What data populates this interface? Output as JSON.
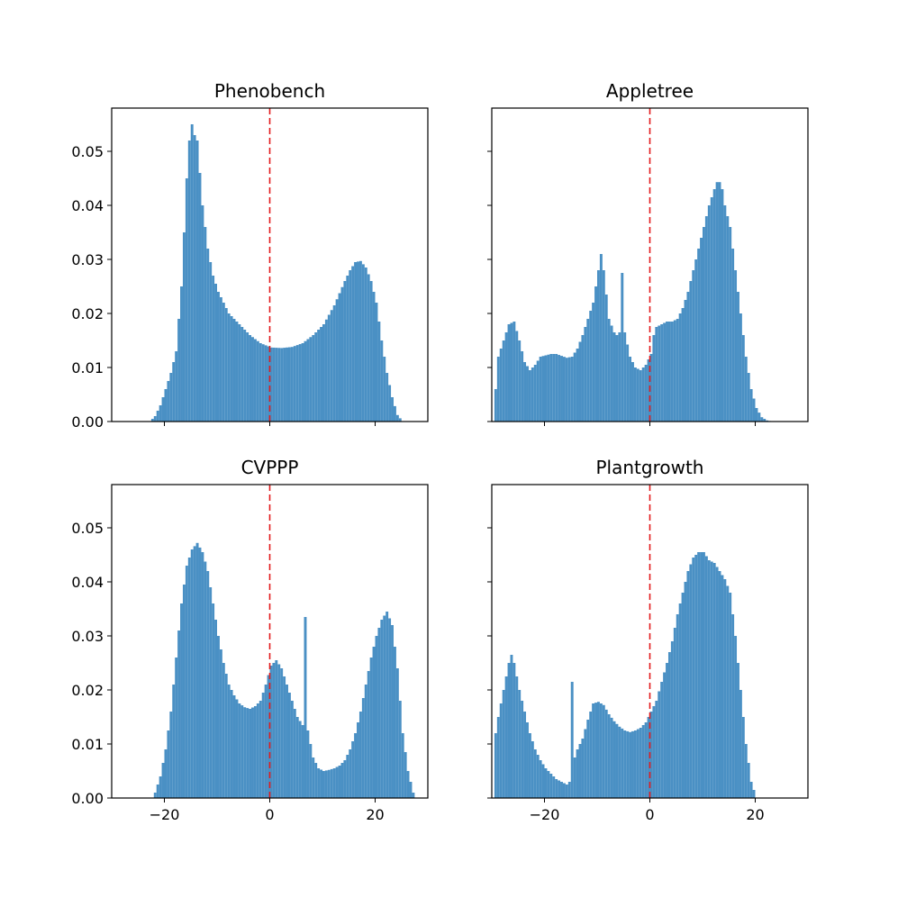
{
  "colors": {
    "bar": "#4a90c4",
    "reference_line": "#e31a1c"
  },
  "layout": {
    "rows": 2,
    "cols": 2,
    "sharex": true,
    "sharey": true
  },
  "axes": {
    "xlim": [
      -30,
      30
    ],
    "ylim": [
      0,
      0.058
    ],
    "xticks": [
      -20,
      0,
      20
    ],
    "xtick_labels": [
      "−20",
      "0",
      "20"
    ],
    "yticks": [
      0,
      0.01,
      0.02,
      0.03,
      0.04,
      0.05
    ],
    "ytick_labels": [
      "0.00",
      "0.01",
      "0.02",
      "0.03",
      "0.04",
      "0.05"
    ]
  },
  "chart_data": [
    {
      "type": "bar",
      "title": "Phenobench",
      "reference_line_x": 0,
      "bin_width": 0.5,
      "points": [
        [
          -23,
          0
        ],
        [
          -22,
          0.001
        ],
        [
          -21,
          0.003
        ],
        [
          -20,
          0.006
        ],
        [
          -19,
          0.009
        ],
        [
          -18,
          0.013
        ],
        [
          -17,
          0.025
        ],
        [
          -16,
          0.045
        ],
        [
          -15.5,
          0.052
        ],
        [
          -15,
          0.055
        ],
        [
          -14.5,
          0.053
        ],
        [
          -14,
          0.052
        ],
        [
          -13.5,
          0.046
        ],
        [
          -13,
          0.04
        ],
        [
          -12,
          0.032
        ],
        [
          -11,
          0.027
        ],
        [
          -10,
          0.024
        ],
        [
          -9,
          0.022
        ],
        [
          -8,
          0.02
        ],
        [
          -6,
          0.018
        ],
        [
          -4,
          0.016
        ],
        [
          -2,
          0.0145
        ],
        [
          0,
          0.0137
        ],
        [
          2,
          0.0136
        ],
        [
          4,
          0.0138
        ],
        [
          6,
          0.0145
        ],
        [
          8,
          0.016
        ],
        [
          10,
          0.018
        ],
        [
          12,
          0.0215
        ],
        [
          14,
          0.026
        ],
        [
          15,
          0.028
        ],
        [
          16,
          0.0295
        ],
        [
          17,
          0.0297
        ],
        [
          18,
          0.0285
        ],
        [
          19,
          0.026
        ],
        [
          20,
          0.022
        ],
        [
          21,
          0.015
        ],
        [
          22,
          0.009
        ],
        [
          23,
          0.0045
        ],
        [
          24,
          0.0012
        ],
        [
          25,
          0
        ]
      ]
    },
    {
      "type": "bar",
      "title": "Appletree",
      "reference_line_x": 0,
      "bin_width": 0.5,
      "points": [
        [
          -30,
          0.0005
        ],
        [
          -29.5,
          0.006
        ],
        [
          -29,
          0.012
        ],
        [
          -28,
          0.015
        ],
        [
          -27,
          0.018
        ],
        [
          -26,
          0.0185
        ],
        [
          -25,
          0.015
        ],
        [
          -24,
          0.011
        ],
        [
          -23,
          0.0095
        ],
        [
          -22,
          0.0105
        ],
        [
          -21,
          0.012
        ],
        [
          -19,
          0.0125
        ],
        [
          -18,
          0.0125
        ],
        [
          -16,
          0.0118
        ],
        [
          -15,
          0.012
        ],
        [
          -14,
          0.0135
        ],
        [
          -13,
          0.016
        ],
        [
          -12,
          0.019
        ],
        [
          -11,
          0.022
        ],
        [
          -10,
          0.028
        ],
        [
          -9.5,
          0.031
        ],
        [
          -9,
          0.028
        ],
        [
          -8,
          0.019
        ],
        [
          -7,
          0.0165
        ],
        [
          -6.5,
          0.016
        ],
        [
          -6,
          0.0165
        ],
        [
          -5.5,
          0.0275
        ],
        [
          -5,
          0.0165
        ],
        [
          -4,
          0.012
        ],
        [
          -3,
          0.01
        ],
        [
          -2,
          0.0095
        ],
        [
          -1,
          0.0105
        ],
        [
          0,
          0.0125
        ],
        [
          0.5,
          0.016
        ],
        [
          1,
          0.0175
        ],
        [
          2,
          0.018
        ],
        [
          3,
          0.0185
        ],
        [
          4,
          0.0185
        ],
        [
          5,
          0.019
        ],
        [
          6,
          0.021
        ],
        [
          7,
          0.024
        ],
        [
          8,
          0.028
        ],
        [
          9,
          0.032
        ],
        [
          10,
          0.036
        ],
        [
          11,
          0.04
        ],
        [
          12,
          0.043
        ],
        [
          12.5,
          0.0443
        ],
        [
          13,
          0.0443
        ],
        [
          13.5,
          0.043
        ],
        [
          14,
          0.04
        ],
        [
          15,
          0.036
        ],
        [
          16,
          0.028
        ],
        [
          17,
          0.02
        ],
        [
          18,
          0.012
        ],
        [
          19,
          0.006
        ],
        [
          20,
          0.0025
        ],
        [
          21,
          0.0008
        ],
        [
          22,
          0.0002
        ],
        [
          23,
          0
        ]
      ]
    },
    {
      "type": "bar",
      "title": "CVPPP",
      "reference_line_x": 0,
      "bin_width": 0.5,
      "points": [
        [
          -22.5,
          0
        ],
        [
          -22,
          0.001
        ],
        [
          -21,
          0.004
        ],
        [
          -20,
          0.009
        ],
        [
          -19,
          0.016
        ],
        [
          -18,
          0.026
        ],
        [
          -17,
          0.036
        ],
        [
          -16,
          0.043
        ],
        [
          -15,
          0.046
        ],
        [
          -14,
          0.0472
        ],
        [
          -13,
          0.0455
        ],
        [
          -12,
          0.042
        ],
        [
          -11,
          0.036
        ],
        [
          -10,
          0.03
        ],
        [
          -9,
          0.025
        ],
        [
          -8,
          0.021
        ],
        [
          -7,
          0.019
        ],
        [
          -6,
          0.0175
        ],
        [
          -5,
          0.0168
        ],
        [
          -4,
          0.0165
        ],
        [
          -3,
          0.017
        ],
        [
          -2,
          0.018
        ],
        [
          -1,
          0.021
        ],
        [
          0,
          0.0245
        ],
        [
          1,
          0.0255
        ],
        [
          2,
          0.024
        ],
        [
          3,
          0.021
        ],
        [
          4,
          0.018
        ],
        [
          5,
          0.015
        ],
        [
          6,
          0.0135
        ],
        [
          6.5,
          0.0335
        ],
        [
          7,
          0.0125
        ],
        [
          8,
          0.0075
        ],
        [
          9,
          0.0055
        ],
        [
          10,
          0.005
        ],
        [
          11,
          0.0052
        ],
        [
          12,
          0.0055
        ],
        [
          13,
          0.006
        ],
        [
          14,
          0.007
        ],
        [
          15,
          0.009
        ],
        [
          16,
          0.012
        ],
        [
          17,
          0.016
        ],
        [
          18,
          0.021
        ],
        [
          19,
          0.026
        ],
        [
          20,
          0.03
        ],
        [
          21,
          0.033
        ],
        [
          22,
          0.0345
        ],
        [
          23,
          0.032
        ],
        [
          24,
          0.024
        ],
        [
          25,
          0.012
        ],
        [
          26,
          0.005
        ],
        [
          27,
          0.001
        ],
        [
          27.5,
          0
        ]
      ]
    },
    {
      "type": "bar",
      "title": "Plantgrowth",
      "reference_line_x": 0,
      "bin_width": 0.5,
      "points": [
        [
          -30,
          0.0005
        ],
        [
          -29.5,
          0.012
        ],
        [
          -29,
          0.015
        ],
        [
          -28,
          0.02
        ],
        [
          -27,
          0.025
        ],
        [
          -26.5,
          0.0265
        ],
        [
          -26,
          0.025
        ],
        [
          -25,
          0.02
        ],
        [
          -24,
          0.016
        ],
        [
          -23,
          0.012
        ],
        [
          -22,
          0.009
        ],
        [
          -21,
          0.007
        ],
        [
          -20,
          0.0055
        ],
        [
          -19,
          0.0045
        ],
        [
          -18,
          0.0035
        ],
        [
          -17,
          0.003
        ],
        [
          -16,
          0.0025
        ],
        [
          -15.5,
          0.003
        ],
        [
          -15,
          0.0215
        ],
        [
          -14.5,
          0.0075
        ],
        [
          -14,
          0.009
        ],
        [
          -13,
          0.011
        ],
        [
          -12,
          0.0145
        ],
        [
          -11,
          0.0175
        ],
        [
          -10,
          0.0178
        ],
        [
          -9,
          0.0172
        ],
        [
          -8,
          0.0155
        ],
        [
          -7,
          0.0142
        ],
        [
          -6,
          0.0132
        ],
        [
          -5,
          0.0125
        ],
        [
          -4,
          0.0122
        ],
        [
          -3,
          0.0125
        ],
        [
          -2,
          0.013
        ],
        [
          -1,
          0.014
        ],
        [
          0,
          0.016
        ],
        [
          1,
          0.018
        ],
        [
          2,
          0.0215
        ],
        [
          3,
          0.025
        ],
        [
          4,
          0.029
        ],
        [
          5,
          0.034
        ],
        [
          6,
          0.038
        ],
        [
          7,
          0.042
        ],
        [
          8,
          0.0445
        ],
        [
          9,
          0.0455
        ],
        [
          10,
          0.0455
        ],
        [
          11,
          0.044
        ],
        [
          12,
          0.0435
        ],
        [
          13,
          0.042
        ],
        [
          14,
          0.0405
        ],
        [
          15,
          0.038
        ],
        [
          16,
          0.03
        ],
        [
          17,
          0.02
        ],
        [
          18,
          0.01
        ],
        [
          19,
          0.003
        ],
        [
          20,
          0
        ]
      ]
    }
  ]
}
